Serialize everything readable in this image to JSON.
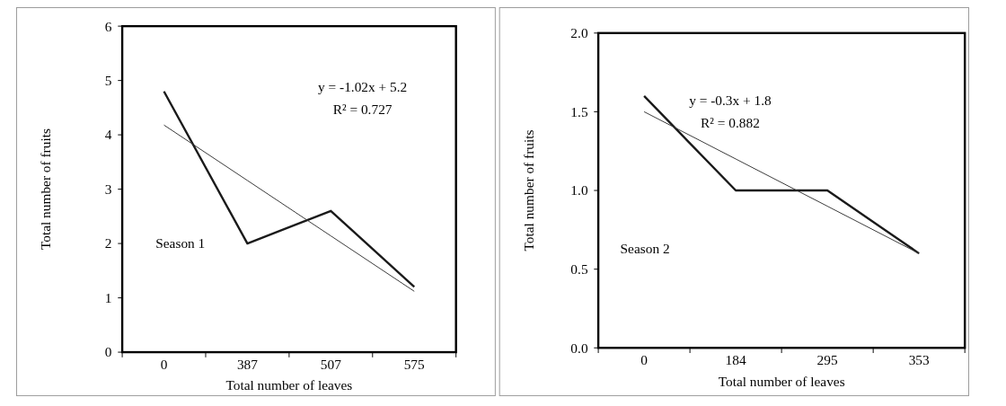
{
  "chart_data": [
    {
      "type": "line",
      "xlabel": "Total number of leaves",
      "ylabel": "Total number of fruits",
      "categories": [
        "0",
        "387",
        "507",
        "575"
      ],
      "ylim": [
        0,
        6
      ],
      "yticks": [
        0,
        1,
        2,
        3,
        4,
        5,
        6
      ],
      "grid": false,
      "marker": "none",
      "series": [
        {
          "color": "#1a1a1a",
          "values": [
            4.8,
            2.0,
            2.6,
            1.2
          ]
        },
        {
          "type": "line",
          "color": "#333333",
          "values": [
            4.18,
            3.16,
            2.14,
            1.12
          ]
        }
      ],
      "annotations": [
        "y = -1.02x + 5.2",
        "R² = 0.727",
        "Season 1"
      ]
    },
    {
      "type": "line",
      "xlabel": "Total number of leaves",
      "ylabel": "Total number of fruits",
      "categories": [
        "0",
        "184",
        "295",
        "353"
      ],
      "ylim": [
        0,
        2
      ],
      "yticks": [
        {
          "value": 0,
          "label": "0.0"
        },
        {
          "value": 0.5,
          "label": "0.5"
        },
        {
          "value": 1,
          "label": "1.0"
        },
        {
          "value": 1.5,
          "label": "1.5"
        },
        {
          "value": 2,
          "label": "2.0"
        }
      ],
      "grid": false,
      "marker": "none",
      "series": [
        {
          "color": "#1a1a1a",
          "values": [
            1.6,
            1.0,
            1.0,
            0.6
          ]
        },
        {
          "type": "line",
          "color": "#333333",
          "values": [
            1.5,
            1.2,
            0.9,
            0.6
          ]
        }
      ],
      "annotations": [
        "y = -0.3x + 1.8",
        "R² = 0.882",
        "Season 2"
      ]
    }
  ]
}
